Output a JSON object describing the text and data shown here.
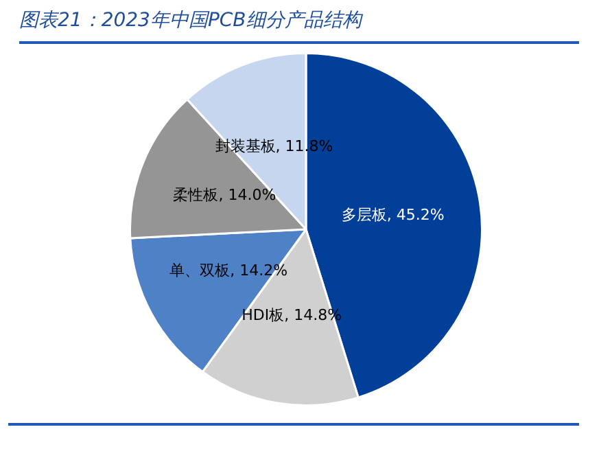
{
  "chart_data": {
    "type": "pie",
    "title": "图表21：2023年中国PCB细分产品结构",
    "categories": [
      "多层板",
      "HDI板",
      "单、双板",
      "柔性板",
      "封装基板"
    ],
    "values": [
      45.2,
      14.8,
      14.2,
      14.0,
      11.8
    ],
    "value_labels": [
      "45.2%",
      "14.8%",
      "14.2%",
      "14.0%",
      "11.8%"
    ],
    "colors": [
      "#023f98",
      "#d0d0d0",
      "#4f81c7",
      "#959595",
      "#c5d6ee"
    ],
    "legend": false
  }
}
